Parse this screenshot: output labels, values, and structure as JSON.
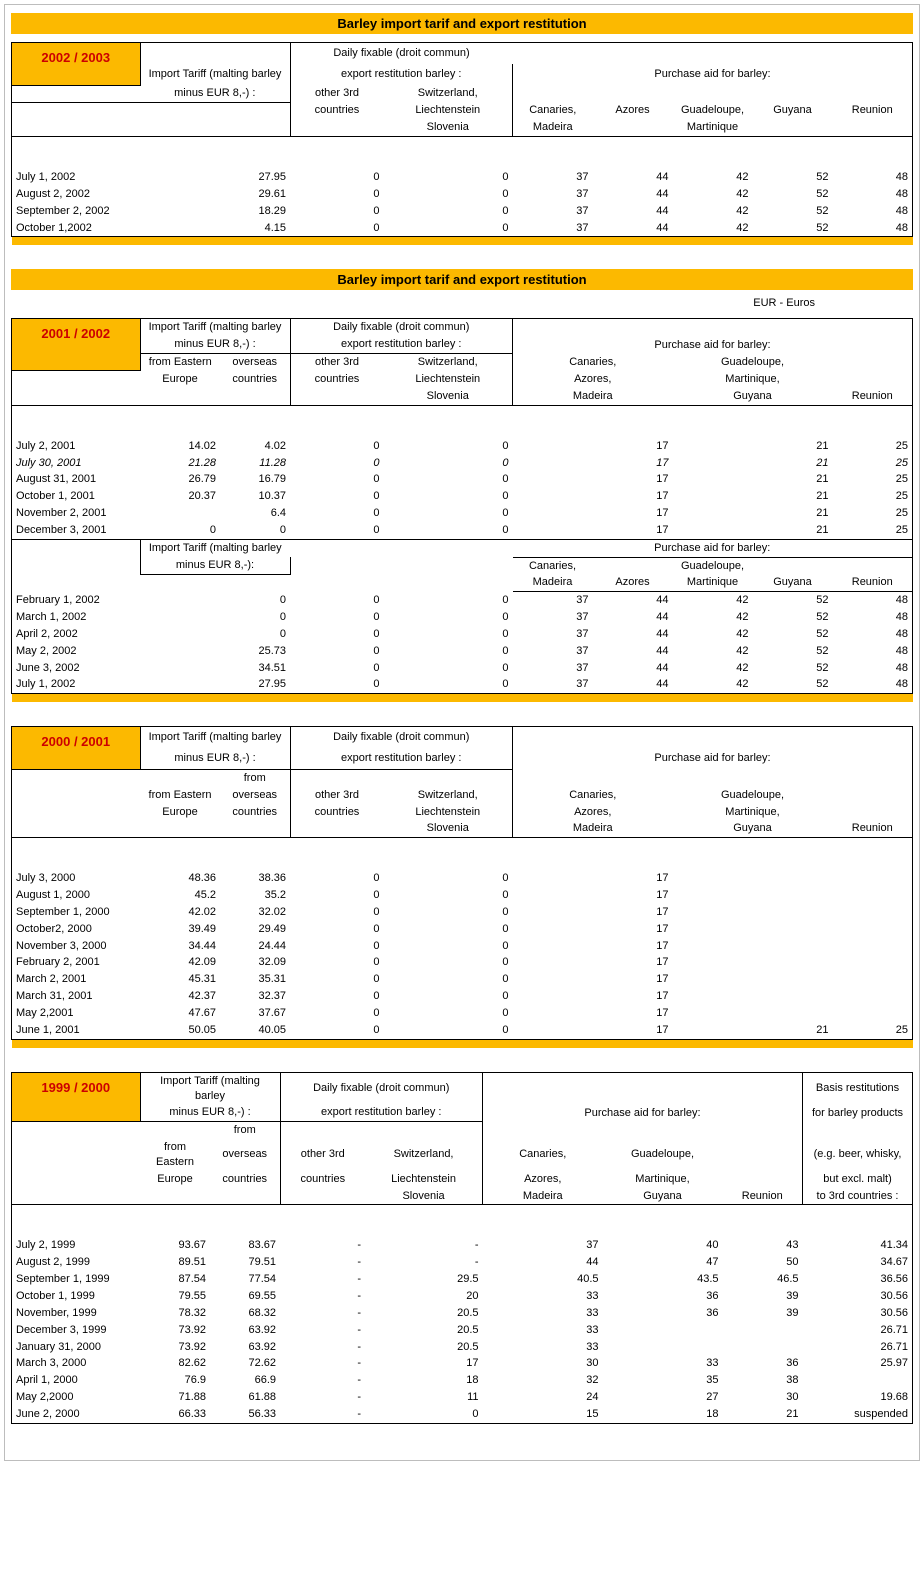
{
  "title": "Barley import tarif and export restitution",
  "euroNote": "EUR - Euros",
  "labels": {
    "importTariff1": "Import Tariff (malting barley",
    "importTariff2": "minus EUR 8,-) :",
    "importTariff2b": "minus EUR 8,-):",
    "dailyFix1": "Daily fixable (droit commun)",
    "dailyFix2": "export restitution barley :",
    "other3rd": "other 3rd",
    "countries": "countries",
    "swiss1": "Switzerland,",
    "swiss2": "Liechtenstein",
    "swiss3": "Slovenia",
    "aidHeader": "Purchase aid for barley:",
    "canMad1": "Canaries,",
    "canMad2": "Madeira",
    "azores": "Azores",
    "guadMart1": "Guadeloupe,",
    "guadMart2": "Martinique",
    "guyana": "Guyana",
    "reunion": "Reunion",
    "fromEast1": "from Eastern",
    "fromEast2": "Europe",
    "from": "from",
    "overseas": "overseas",
    "canAzMad1": "Canaries,",
    "canAzMad2": "Azores,",
    "canAzMad3": "Madeira",
    "gmg1": "Guadeloupe,",
    "gmg2": "Martinique,",
    "gmg3": "Guyana",
    "basis1": "Basis restitutions",
    "basis2": "for barley products",
    "basis3": "(e.g. beer, whisky,",
    "basis4": "but excl. malt)",
    "basis5": "to 3rd countries :"
  },
  "s2002": {
    "year": "2002 / 2003",
    "rows": [
      {
        "date": "July 1, 2002",
        "t": "27.95",
        "o": "0",
        "s": "0",
        "c": "37",
        "a": "44",
        "g": "42",
        "gy": "52",
        "r": "48"
      },
      {
        "date": "August 2, 2002",
        "t": "29.61",
        "o": "0",
        "s": "0",
        "c": "37",
        "a": "44",
        "g": "42",
        "gy": "52",
        "r": "48"
      },
      {
        "date": "September 2, 2002",
        "t": "18.29",
        "o": "0",
        "s": "0",
        "c": "37",
        "a": "44",
        "g": "42",
        "gy": "52",
        "r": "48"
      },
      {
        "date": "October 1,2002",
        "t": "4.15",
        "o": "0",
        "s": "0",
        "c": "37",
        "a": "44",
        "g": "42",
        "gy": "52",
        "r": "48"
      }
    ]
  },
  "s2001": {
    "year": "2001 / 2002",
    "partA": [
      {
        "date": "July 2, 2001",
        "e": "14.02",
        "ov": "4.02",
        "o": "0",
        "s": "0",
        "cam": "17",
        "gmg": "21",
        "r": "25"
      },
      {
        "date": "July 30, 2001",
        "e": "21.28",
        "ov": "11.28",
        "o": "0",
        "s": "0",
        "cam": "17",
        "gmg": "21",
        "r": "25",
        "italic": true
      },
      {
        "date": "August 31, 2001",
        "e": "26.79",
        "ov": "16.79",
        "o": "0",
        "s": "0",
        "cam": "17",
        "gmg": "21",
        "r": "25"
      },
      {
        "date": "October 1, 2001",
        "e": "20.37",
        "ov": "10.37",
        "o": "0",
        "s": "0",
        "cam": "17",
        "gmg": "21",
        "r": "25"
      },
      {
        "date": "November 2, 2001",
        "e": "",
        "ov": "6.4",
        "o": "0",
        "s": "0",
        "cam": "17",
        "gmg": "21",
        "r": "25"
      },
      {
        "date": "December 3, 2001",
        "e": "0",
        "ov": "0",
        "o": "0",
        "s": "0",
        "cam": "17",
        "gmg": "21",
        "r": "25"
      }
    ],
    "partB": [
      {
        "date": "February 1, 2002",
        "t": "0",
        "o": "0",
        "s": "0",
        "c": "37",
        "a": "44",
        "g": "42",
        "gy": "52",
        "r": "48"
      },
      {
        "date": "March 1, 2002",
        "t": "0",
        "o": "0",
        "s": "0",
        "c": "37",
        "a": "44",
        "g": "42",
        "gy": "52",
        "r": "48"
      },
      {
        "date": "April 2, 2002",
        "t": "0",
        "o": "0",
        "s": "0",
        "c": "37",
        "a": "44",
        "g": "42",
        "gy": "52",
        "r": "48"
      },
      {
        "date": "May 2, 2002",
        "t": "25.73",
        "o": "0",
        "s": "0",
        "c": "37",
        "a": "44",
        "g": "42",
        "gy": "52",
        "r": "48"
      },
      {
        "date": "June 3, 2002",
        "t": "34.51",
        "o": "0",
        "s": "0",
        "c": "37",
        "a": "44",
        "g": "42",
        "gy": "52",
        "r": "48"
      },
      {
        "date": "July 1, 2002",
        "t": "27.95",
        "o": "0",
        "s": "0",
        "c": "37",
        "a": "44",
        "g": "42",
        "gy": "52",
        "r": "48"
      }
    ]
  },
  "s2000": {
    "year": "2000 / 2001",
    "rows": [
      {
        "date": "July 3, 2000",
        "e": "48.36",
        "ov": "38.36",
        "o": "0",
        "s": "0",
        "cam": "17",
        "gmg": "",
        "r": ""
      },
      {
        "date": "August 1, 2000",
        "e": "45.2",
        "ov": "35.2",
        "o": "0",
        "s": "0",
        "cam": "17",
        "gmg": "",
        "r": ""
      },
      {
        "date": "September 1, 2000",
        "e": "42.02",
        "ov": "32.02",
        "o": "0",
        "s": "0",
        "cam": "17",
        "gmg": "",
        "r": ""
      },
      {
        "date": "October2, 2000",
        "e": "39.49",
        "ov": "29.49",
        "o": "0",
        "s": "0",
        "cam": "17",
        "gmg": "",
        "r": ""
      },
      {
        "date": "November 3, 2000",
        "e": "34.44",
        "ov": "24.44",
        "o": "0",
        "s": "0",
        "cam": "17",
        "gmg": "",
        "r": ""
      },
      {
        "date": "February 2, 2001",
        "e": "42.09",
        "ov": "32.09",
        "o": "0",
        "s": "0",
        "cam": "17",
        "gmg": "",
        "r": ""
      },
      {
        "date": "March 2, 2001",
        "e": "45.31",
        "ov": "35.31",
        "o": "0",
        "s": "0",
        "cam": "17",
        "gmg": "",
        "r": ""
      },
      {
        "date": "March 31, 2001",
        "e": "42.37",
        "ov": "32.37",
        "o": "0",
        "s": "0",
        "cam": "17",
        "gmg": "",
        "r": ""
      },
      {
        "date": "May 2,2001",
        "e": "47.67",
        "ov": "37.67",
        "o": "0",
        "s": "0",
        "cam": "17",
        "gmg": "",
        "r": ""
      },
      {
        "date": "June 1, 2001",
        "e": "50.05",
        "ov": "40.05",
        "o": "0",
        "s": "0",
        "cam": "17",
        "gmg": "21",
        "r": "25"
      }
    ]
  },
  "s1999": {
    "year": "1999 / 2000",
    "rows": [
      {
        "date": "July 2, 1999",
        "e": "93.67",
        "ov": "83.67",
        "o": "-",
        "s": "-",
        "cam": "37",
        "gmg": "40",
        "r": "43",
        "b": "41.34"
      },
      {
        "date": "August 2, 1999",
        "e": "89.51",
        "ov": "79.51",
        "o": "-",
        "s": "-",
        "cam": "44",
        "gmg": "47",
        "r": "50",
        "b": "34.67"
      },
      {
        "date": "September 1, 1999",
        "e": "87.54",
        "ov": "77.54",
        "o": "-",
        "s": "29.5",
        "cam": "40.5",
        "gmg": "43.5",
        "r": "46.5",
        "b": "36.56"
      },
      {
        "date": "October 1, 1999",
        "e": "79.55",
        "ov": "69.55",
        "o": "-",
        "s": "20",
        "cam": "33",
        "gmg": "36",
        "r": "39",
        "b": "30.56"
      },
      {
        "date": "November, 1999",
        "e": "78.32",
        "ov": "68.32",
        "o": "-",
        "s": "20.5",
        "cam": "33",
        "gmg": "36",
        "r": "39",
        "b": "30.56"
      },
      {
        "date": "December 3, 1999",
        "e": "73.92",
        "ov": "63.92",
        "o": "-",
        "s": "20.5",
        "cam": "33",
        "gmg": "",
        "r": "",
        "b": "26.71"
      },
      {
        "date": "January 31, 2000",
        "e": "73.92",
        "ov": "63.92",
        "o": "-",
        "s": "20.5",
        "cam": "33",
        "gmg": "",
        "r": "",
        "b": "26.71"
      },
      {
        "date": "March 3, 2000",
        "e": "82.62",
        "ov": "72.62",
        "o": "-",
        "s": "17",
        "cam": "30",
        "gmg": "33",
        "r": "36",
        "b": "25.97"
      },
      {
        "date": "April 1, 2000",
        "e": "76.9",
        "ov": "66.9",
        "o": "-",
        "s": "18",
        "cam": "32",
        "gmg": "35",
        "r": "38",
        "b": ""
      },
      {
        "date": "May 2,2000",
        "e": "71.88",
        "ov": "61.88",
        "o": "-",
        "s": "11",
        "cam": "24",
        "gmg": "27",
        "r": "30",
        "b": "19.68"
      },
      {
        "date": "June 2, 2000",
        "e": "66.33",
        "ov": "56.33",
        "o": "-",
        "s": "0",
        "cam": "15",
        "gmg": "18",
        "r": "21",
        "b": "suspended"
      }
    ]
  }
}
